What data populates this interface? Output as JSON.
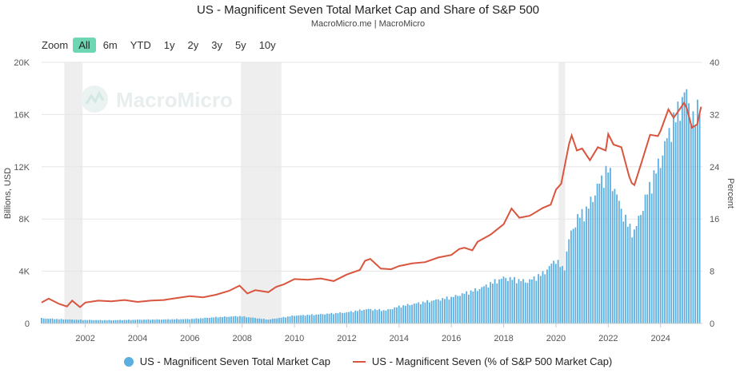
{
  "header": {
    "title": "US - Magnificent Seven Total Market Cap and Share of S&P 500",
    "subtitle": "MacroMicro.me | MacroMicro"
  },
  "zoom": {
    "label": "Zoom",
    "buttons": [
      "All",
      "6m",
      "YTD",
      "1y",
      "2y",
      "3y",
      "5y",
      "10y"
    ],
    "active": "All"
  },
  "watermark": {
    "text": "MacroMicro"
  },
  "legend": {
    "bar_label": "US - Magnificent Seven Total Market Cap",
    "line_label": "US - Magnificent Seven (% of S&P 500 Market Cap)"
  },
  "colors": {
    "bars": "#5aaee0",
    "line": "#d9553e",
    "recession": "#eeeeee",
    "grid": "#e6e6e6",
    "active_zoom": "#6fd6b3"
  },
  "chart_data": {
    "type": "bar",
    "xlim": [
      2000.33,
      2025.6
    ],
    "x_ticks": [
      "2002",
      "2004",
      "2006",
      "2008",
      "2010",
      "2012",
      "2014",
      "2016",
      "2018",
      "2020",
      "2022",
      "2024"
    ],
    "y_left": {
      "label": "Billions, USD",
      "range": [
        0,
        20000
      ],
      "ticks": [
        "0",
        "4K",
        "8K",
        "12K",
        "16K",
        "20K"
      ]
    },
    "y_right": {
      "label": "Percent",
      "range": [
        0,
        40
      ],
      "ticks": [
        "0",
        "8",
        "16",
        "24",
        "32",
        "40"
      ]
    },
    "recession_shading": [
      [
        2001.2,
        2001.9
      ],
      [
        2007.95,
        2009.5
      ],
      [
        2020.1,
        2020.35
      ]
    ],
    "series": [
      {
        "name": "US - Magnificent Seven Total Market Cap",
        "kind": "bar",
        "axis": "left",
        "points": [
          [
            2000.33,
            400
          ],
          [
            2001.0,
            330
          ],
          [
            2002.0,
            270
          ],
          [
            2003.0,
            250
          ],
          [
            2004.0,
            290
          ],
          [
            2005.0,
            310
          ],
          [
            2006.0,
            340
          ],
          [
            2007.0,
            480
          ],
          [
            2007.9,
            560
          ],
          [
            2008.5,
            420
          ],
          [
            2009.0,
            300
          ],
          [
            2010.0,
            600
          ],
          [
            2011.0,
            700
          ],
          [
            2012.0,
            850
          ],
          [
            2012.8,
            1100
          ],
          [
            2013.5,
            1000
          ],
          [
            2014.0,
            1300
          ],
          [
            2015.0,
            1650
          ],
          [
            2016.0,
            2000
          ],
          [
            2017.0,
            2600
          ],
          [
            2018.0,
            3500
          ],
          [
            2018.9,
            3200
          ],
          [
            2019.5,
            3800
          ],
          [
            2020.0,
            4900
          ],
          [
            2020.3,
            4000
          ],
          [
            2020.5,
            6500
          ],
          [
            2020.8,
            8000
          ],
          [
            2021.2,
            8700
          ],
          [
            2021.6,
            10500
          ],
          [
            2022.0,
            11800
          ],
          [
            2022.5,
            8700
          ],
          [
            2022.8,
            7300
          ],
          [
            2023.0,
            7000
          ],
          [
            2023.5,
            10000
          ],
          [
            2024.0,
            12500
          ],
          [
            2024.3,
            14500
          ],
          [
            2024.6,
            15800
          ],
          [
            2024.9,
            17500
          ],
          [
            2025.0,
            17600
          ],
          [
            2025.3,
            15000
          ],
          [
            2025.45,
            16800
          ],
          [
            2025.55,
            17900
          ]
        ]
      },
      {
        "name": "US - Magnificent Seven (% of S&P 500 Market Cap)",
        "kind": "line",
        "axis": "right",
        "points": [
          [
            2000.33,
            3.2
          ],
          [
            2000.6,
            3.8
          ],
          [
            2001.0,
            3.0
          ],
          [
            2001.3,
            2.6
          ],
          [
            2001.5,
            3.5
          ],
          [
            2001.8,
            2.5
          ],
          [
            2002.0,
            3.2
          ],
          [
            2002.5,
            3.5
          ],
          [
            2003.0,
            3.4
          ],
          [
            2003.5,
            3.6
          ],
          [
            2004.0,
            3.3
          ],
          [
            2004.5,
            3.5
          ],
          [
            2005.0,
            3.6
          ],
          [
            2005.5,
            3.9
          ],
          [
            2006.0,
            4.2
          ],
          [
            2006.5,
            4.0
          ],
          [
            2007.0,
            4.4
          ],
          [
            2007.5,
            5.0
          ],
          [
            2007.9,
            5.8
          ],
          [
            2008.2,
            4.6
          ],
          [
            2008.5,
            5.1
          ],
          [
            2009.0,
            4.8
          ],
          [
            2009.3,
            5.6
          ],
          [
            2009.6,
            6.0
          ],
          [
            2010.0,
            6.8
          ],
          [
            2010.5,
            6.7
          ],
          [
            2011.0,
            6.9
          ],
          [
            2011.5,
            6.5
          ],
          [
            2012.0,
            7.5
          ],
          [
            2012.5,
            8.2
          ],
          [
            2012.7,
            9.6
          ],
          [
            2012.9,
            9.9
          ],
          [
            2013.3,
            8.4
          ],
          [
            2013.7,
            8.3
          ],
          [
            2014.0,
            8.8
          ],
          [
            2014.5,
            9.2
          ],
          [
            2015.0,
            9.4
          ],
          [
            2015.5,
            10.1
          ],
          [
            2016.0,
            10.5
          ],
          [
            2016.3,
            11.4
          ],
          [
            2016.5,
            11.6
          ],
          [
            2016.8,
            11.2
          ],
          [
            2017.0,
            12.5
          ],
          [
            2017.5,
            13.6
          ],
          [
            2018.0,
            15.2
          ],
          [
            2018.3,
            17.6
          ],
          [
            2018.6,
            16.2
          ],
          [
            2019.0,
            16.5
          ],
          [
            2019.5,
            17.7
          ],
          [
            2019.8,
            18.2
          ],
          [
            2020.0,
            20.5
          ],
          [
            2020.2,
            21.4
          ],
          [
            2020.5,
            27.5
          ],
          [
            2020.6,
            28.8
          ],
          [
            2020.8,
            26.5
          ],
          [
            2021.0,
            26.8
          ],
          [
            2021.3,
            25.0
          ],
          [
            2021.6,
            27.0
          ],
          [
            2021.9,
            26.5
          ],
          [
            2022.0,
            29.0
          ],
          [
            2022.2,
            27.4
          ],
          [
            2022.5,
            27.0
          ],
          [
            2022.8,
            22.5
          ],
          [
            2022.9,
            21.5
          ],
          [
            2023.0,
            21.2
          ],
          [
            2023.3,
            25.0
          ],
          [
            2023.6,
            28.9
          ],
          [
            2023.9,
            28.7
          ],
          [
            2024.0,
            29.5
          ],
          [
            2024.3,
            32.8
          ],
          [
            2024.5,
            31.5
          ],
          [
            2024.8,
            33.2
          ],
          [
            2024.9,
            33.8
          ],
          [
            2025.0,
            33.0
          ],
          [
            2025.2,
            30.0
          ],
          [
            2025.4,
            30.5
          ],
          [
            2025.55,
            33.2
          ]
        ]
      }
    ]
  }
}
